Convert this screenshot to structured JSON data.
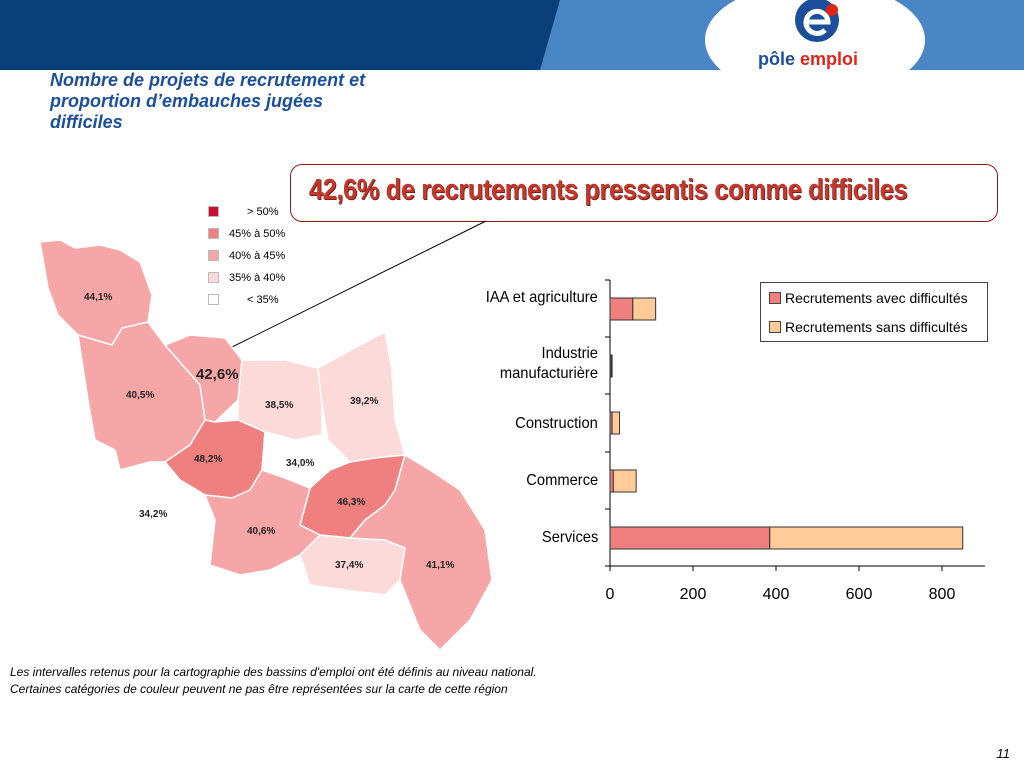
{
  "header": {
    "logo_text_1": "pôle",
    "logo_text_2": "emploi",
    "banner_color": "#0b4a8b",
    "banner_light": "#3e7fc0"
  },
  "title": {
    "line1": "Nombre de projets de recrutement et",
    "line2": "proportion d’embauches jugées",
    "line3": "difficiles"
  },
  "headline": "42,6% de recrutements pressentis comme difficiles",
  "map": {
    "legend": [
      {
        "label": "> 50%",
        "color": "#c8102e"
      },
      {
        "label": "45%   à   50%",
        "color": "#f08080"
      },
      {
        "label": "40%   à   45%",
        "color": "#f6a6a6"
      },
      {
        "label": "35%   à   40%",
        "color": "#fcdada"
      },
      {
        "label": "< 35%",
        "color": "#ffffff"
      }
    ],
    "region_rate": "42,6%",
    "areas": [
      "44,1%",
      "40,5%",
      "38,5%",
      "39,2%",
      "48,2%",
      "34,0%",
      "46,3%",
      "34,2%",
      "40,6%",
      "37,4%",
      "41,1%"
    ]
  },
  "chart_data": {
    "type": "bar",
    "orientation": "horizontal",
    "stacked": true,
    "categories": [
      "IAA et agriculture",
      "Industrie manufacturière",
      "Construction",
      "Commerce",
      "Services"
    ],
    "series": [
      {
        "name": "Recrutements avec difficultés",
        "color": "#f08080",
        "values": [
          55,
          3,
          5,
          8,
          385
        ]
      },
      {
        "name": "Recrutements sans difficultés",
        "color": "#ffcc99",
        "values": [
          55,
          2,
          18,
          55,
          465
        ]
      }
    ],
    "xlim": [
      0,
      900
    ],
    "xticks": [
      "0",
      "200",
      "400",
      "600",
      "800"
    ],
    "legend_position": "top-right"
  },
  "footnote": {
    "line1": "Les intervalles retenus pour la cartographie des bassins d'emploi ont été définis au niveau national.",
    "line2": "Certaines catégories de couleur peuvent ne pas être représentées sur la carte de cette région"
  },
  "page_number": "11"
}
